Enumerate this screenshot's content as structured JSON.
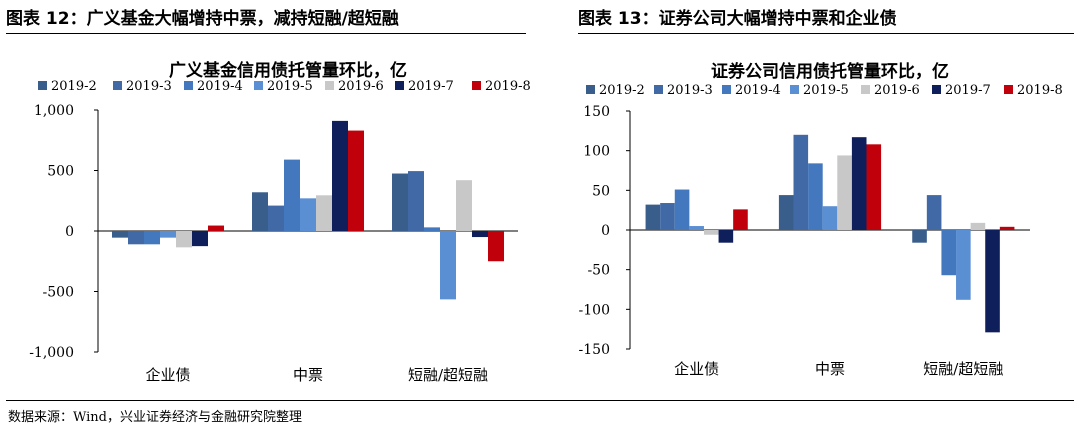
{
  "panels": {
    "left_title": "图表 12：广义基金大幅增持中票，减持短融/超短融",
    "right_title": "图表 13：证券公司大幅增持中票和企业债"
  },
  "footer": {
    "source": "数据来源：Wind，兴业证券经济与金融研究院整理"
  },
  "chart_data": [
    {
      "type": "bar",
      "title": "广义基金信用债托管量环比，亿",
      "categories": [
        "企业债",
        "中票",
        "短融/超短融"
      ],
      "ylim": [
        -1000,
        1000
      ],
      "yticks": [
        -1000,
        -500,
        0,
        500,
        1000
      ],
      "ytick_labels": [
        "-1,000",
        "-500",
        "0",
        "500",
        "1,000"
      ],
      "legend_position": "top",
      "series": [
        {
          "name": "2019-2",
          "color": "#3A5E8C",
          "values": [
            -55,
            320,
            475
          ]
        },
        {
          "name": "2019-3",
          "color": "#4169A5",
          "values": [
            -110,
            210,
            495
          ]
        },
        {
          "name": "2019-4",
          "color": "#4478BE",
          "values": [
            -110,
            590,
            30
          ]
        },
        {
          "name": "2019-5",
          "color": "#5B8FD3",
          "values": [
            -55,
            270,
            -565
          ]
        },
        {
          "name": "2019-6",
          "color": "#C8C8C8",
          "values": [
            -135,
            295,
            420
          ]
        },
        {
          "name": "2019-7",
          "color": "#0F1F5C",
          "values": [
            -125,
            910,
            -50
          ]
        },
        {
          "name": "2019-8",
          "color": "#C0000B",
          "values": [
            45,
            830,
            -250
          ]
        }
      ]
    },
    {
      "type": "bar",
      "title": "证券公司信用债托管量环比，亿",
      "categories": [
        "企业债",
        "中票",
        "短融/超短融"
      ],
      "ylim": [
        -150,
        150
      ],
      "yticks": [
        -150,
        -100,
        -50,
        0,
        50,
        100,
        150
      ],
      "ytick_labels": [
        "-150",
        "-100",
        "-50",
        "0",
        "50",
        "100",
        "150"
      ],
      "legend_position": "top",
      "series": [
        {
          "name": "2019-2",
          "color": "#3A5E8C",
          "values": [
            32,
            44,
            -16
          ]
        },
        {
          "name": "2019-3",
          "color": "#4169A5",
          "values": [
            34,
            120,
            44
          ]
        },
        {
          "name": "2019-4",
          "color": "#4478BE",
          "values": [
            51,
            84,
            -57
          ]
        },
        {
          "name": "2019-5",
          "color": "#5B8FD3",
          "values": [
            5,
            30,
            -88
          ]
        },
        {
          "name": "2019-6",
          "color": "#C8C8C8",
          "values": [
            -6,
            94,
            9
          ]
        },
        {
          "name": "2019-7",
          "color": "#0F1F5C",
          "values": [
            -16,
            117,
            -129
          ]
        },
        {
          "name": "2019-8",
          "color": "#C0000B",
          "values": [
            26,
            108,
            4
          ]
        }
      ]
    }
  ]
}
